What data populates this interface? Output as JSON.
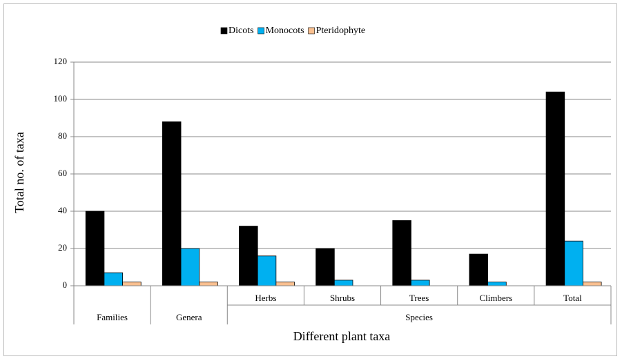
{
  "chart_data": {
    "type": "bar",
    "x_label": "Different plant taxa",
    "y_label": "Total no. of taxa",
    "categories": [
      null,
      null,
      "Herbs",
      "Shrubs",
      "Trees",
      "Climbers",
      "Total"
    ],
    "category_groups": [
      {
        "name": "Families",
        "count": 1
      },
      {
        "name": "Genera",
        "count": 1
      },
      {
        "name": "Species",
        "count": 5
      }
    ],
    "series": [
      {
        "name": "Dicots",
        "color": "#000000",
        "values": [
          40,
          88,
          32,
          20,
          35,
          17,
          104
        ]
      },
      {
        "name": "Monocots",
        "color": "#00b0f0",
        "values": [
          7,
          20,
          16,
          3,
          3,
          2,
          24
        ]
      },
      {
        "name": "Pteridophyte",
        "color": "#fac090",
        "values": [
          2,
          2,
          2,
          0,
          0,
          0,
          2
        ]
      }
    ],
    "ylim": [
      0,
      120
    ],
    "yticks": [
      0,
      20,
      40,
      60,
      80,
      100,
      120
    ],
    "grid": true,
    "legend": "top"
  }
}
